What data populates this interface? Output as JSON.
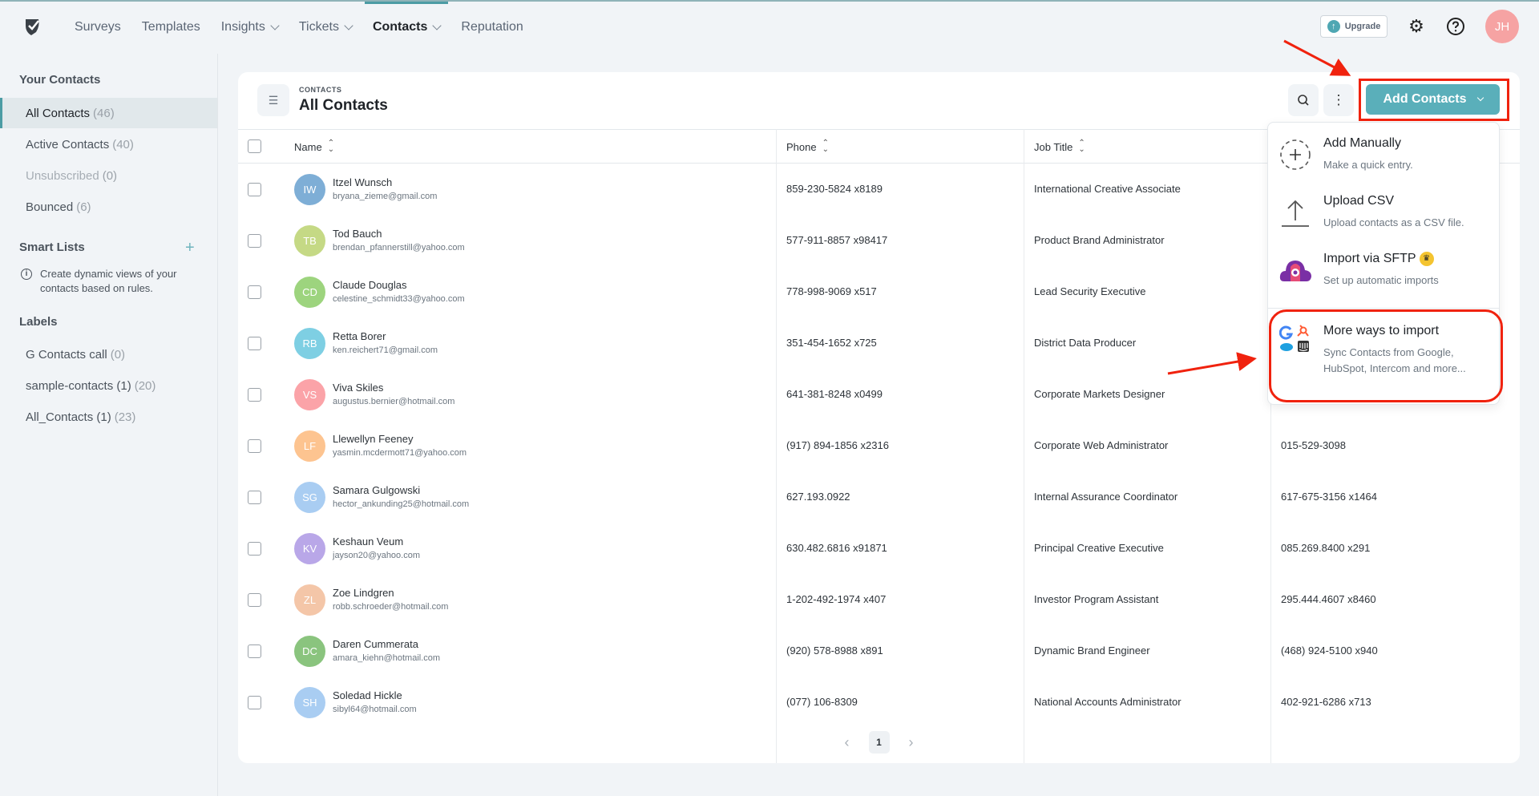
{
  "nav": {
    "items": [
      {
        "label": "Surveys",
        "dropdown": false
      },
      {
        "label": "Templates",
        "dropdown": false
      },
      {
        "label": "Insights",
        "dropdown": true
      },
      {
        "label": "Tickets",
        "dropdown": true
      },
      {
        "label": "Contacts",
        "dropdown": true,
        "active": true
      },
      {
        "label": "Reputation",
        "dropdown": false
      }
    ],
    "upgrade_label": "Upgrade",
    "avatar_initials": "JH"
  },
  "sidebar": {
    "your_contacts_heading": "Your Contacts",
    "contacts": [
      {
        "label": "All Contacts",
        "count": "(46)",
        "active": true
      },
      {
        "label": "Active Contacts",
        "count": "(40)"
      },
      {
        "label": "Unsubscribed",
        "count": "(0)",
        "disabled": true
      },
      {
        "label": "Bounced",
        "count": "(6)"
      }
    ],
    "smart_lists_heading": "Smart Lists",
    "smart_lists_info": "Create dynamic views of your contacts based on rules.",
    "labels_heading": "Labels",
    "labels": [
      {
        "label": "G Contacts call",
        "count": "(0)"
      },
      {
        "label": "sample-contacts (1)",
        "count": "(20)"
      },
      {
        "label": "All_Contacts (1)",
        "count": "(23)"
      }
    ]
  },
  "main": {
    "breadcrumb": "CONTACTS",
    "title": "All Contacts",
    "add_contacts_label": "Add Contacts",
    "columns": [
      "Name",
      "Phone",
      "Job Title"
    ],
    "rows": [
      {
        "initials": "IW",
        "color": "#7eaed6",
        "name": "Itzel Wunsch",
        "email": "bryana_zieme@gmail.com",
        "phone": "859-230-5824 x8189",
        "job": "International Creative Associate",
        "phone2": ""
      },
      {
        "initials": "TB",
        "color": "#c5d985",
        "name": "Tod Bauch",
        "email": "brendan_pfannerstill@yahoo.com",
        "phone": "577-911-8857 x98417",
        "job": "Product Brand Administrator",
        "phone2": ""
      },
      {
        "initials": "CD",
        "color": "#9dd47e",
        "name": "Claude Douglas",
        "email": "celestine_schmidt33@yahoo.com",
        "phone": "778-998-9069 x517",
        "job": "Lead Security Executive",
        "phone2": ""
      },
      {
        "initials": "RB",
        "color": "#7ecfe3",
        "name": "Retta Borer",
        "email": "ken.reichert71@gmail.com",
        "phone": "351-454-1652 x725",
        "job": "District Data Producer",
        "phone2": ""
      },
      {
        "initials": "VS",
        "color": "#fba3a8",
        "name": "Viva Skiles",
        "email": "augustus.bernier@hotmail.com",
        "phone": "641-381-8248 x0499",
        "job": "Corporate Markets Designer",
        "phone2": ""
      },
      {
        "initials": "LF",
        "color": "#fdc490",
        "name": "Llewellyn Feeney",
        "email": "yasmin.mcdermott71@yahoo.com",
        "phone": "(917) 894-1856 x2316",
        "job": "Corporate Web Administrator",
        "phone2": "015-529-3098"
      },
      {
        "initials": "SG",
        "color": "#a9cdf2",
        "name": "Samara Gulgowski",
        "email": "hector_ankunding25@hotmail.com",
        "phone": "627.193.0922",
        "job": "Internal Assurance Coordinator",
        "phone2": "617-675-3156 x1464"
      },
      {
        "initials": "KV",
        "color": "#b9a7e8",
        "name": "Keshaun Veum",
        "email": "jayson20@yahoo.com",
        "phone": "630.482.6816 x91871",
        "job": "Principal Creative Executive",
        "phone2": "085.269.8400 x291"
      },
      {
        "initials": "ZL",
        "color": "#f4c6a8",
        "name": "Zoe Lindgren",
        "email": "robb.schroeder@hotmail.com",
        "phone": "1-202-492-1974 x407",
        "job": "Investor Program Assistant",
        "phone2": "295.444.4607 x8460"
      },
      {
        "initials": "DC",
        "color": "#8ac47e",
        "name": "Daren Cummerata",
        "email": "amara_kiehn@hotmail.com",
        "phone": "(920) 578-8988 x891",
        "job": "Dynamic Brand Engineer",
        "phone2": "(468) 924-5100 x940"
      },
      {
        "initials": "SH",
        "color": "#a9cdf2",
        "name": "Soledad Hickle",
        "email": "sibyl64@hotmail.com",
        "phone": "(077) 106-8309",
        "job": "National Accounts Administrator",
        "phone2": "402-921-6286 x713"
      }
    ],
    "pagination": {
      "current_page": "1"
    }
  },
  "dropdown": {
    "items": [
      {
        "icon": "dashed-plus-icon",
        "title": "Add Manually",
        "subtitle": "Make a quick entry."
      },
      {
        "icon": "upload-icon",
        "title": "Upload CSV",
        "subtitle": "Upload contacts as a CSV file."
      },
      {
        "icon": "sftp-cloud-icon",
        "title": "Import via SFTP",
        "subtitle": "Set up automatic imports",
        "premium": true
      },
      {
        "icon": "integrations-icon",
        "title": "More ways to import",
        "subtitle": "Sync Contacts from Google, HubSpot, Intercom and more..."
      }
    ]
  },
  "colors": {
    "accent": "#5aafba",
    "annotation": "#f0220e"
  }
}
